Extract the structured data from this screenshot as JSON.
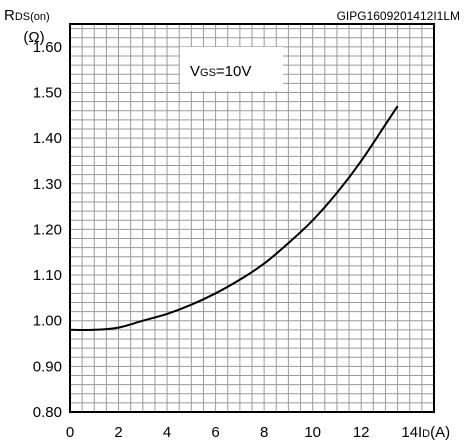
{
  "chart_data": {
    "type": "line",
    "code": "GIPG1609201412I1LM",
    "annotation": "VGS=10V",
    "ylabel": "RDS(on)",
    "ylabel_unit": "(Ω)",
    "xlabel": "ID(A)",
    "xlim": [
      0,
      15
    ],
    "ylim": [
      0.8,
      1.65
    ],
    "x_ticks": [
      "0",
      "2",
      "4",
      "6",
      "8",
      "10",
      "12",
      "14"
    ],
    "y_ticks": [
      "0.80",
      "0.90",
      "1.00",
      "1.10",
      "1.20",
      "1.30",
      "1.40",
      "1.50",
      "1.60"
    ],
    "grid": true,
    "series": [
      {
        "x": [
          0,
          1,
          2,
          3,
          4,
          5,
          6,
          7,
          8,
          9,
          10,
          11,
          12,
          13,
          13.5
        ],
        "y": [
          0.98,
          0.98,
          0.985,
          1.0,
          1.015,
          1.035,
          1.06,
          1.09,
          1.125,
          1.17,
          1.22,
          1.28,
          1.35,
          1.43,
          1.47
        ]
      }
    ]
  }
}
